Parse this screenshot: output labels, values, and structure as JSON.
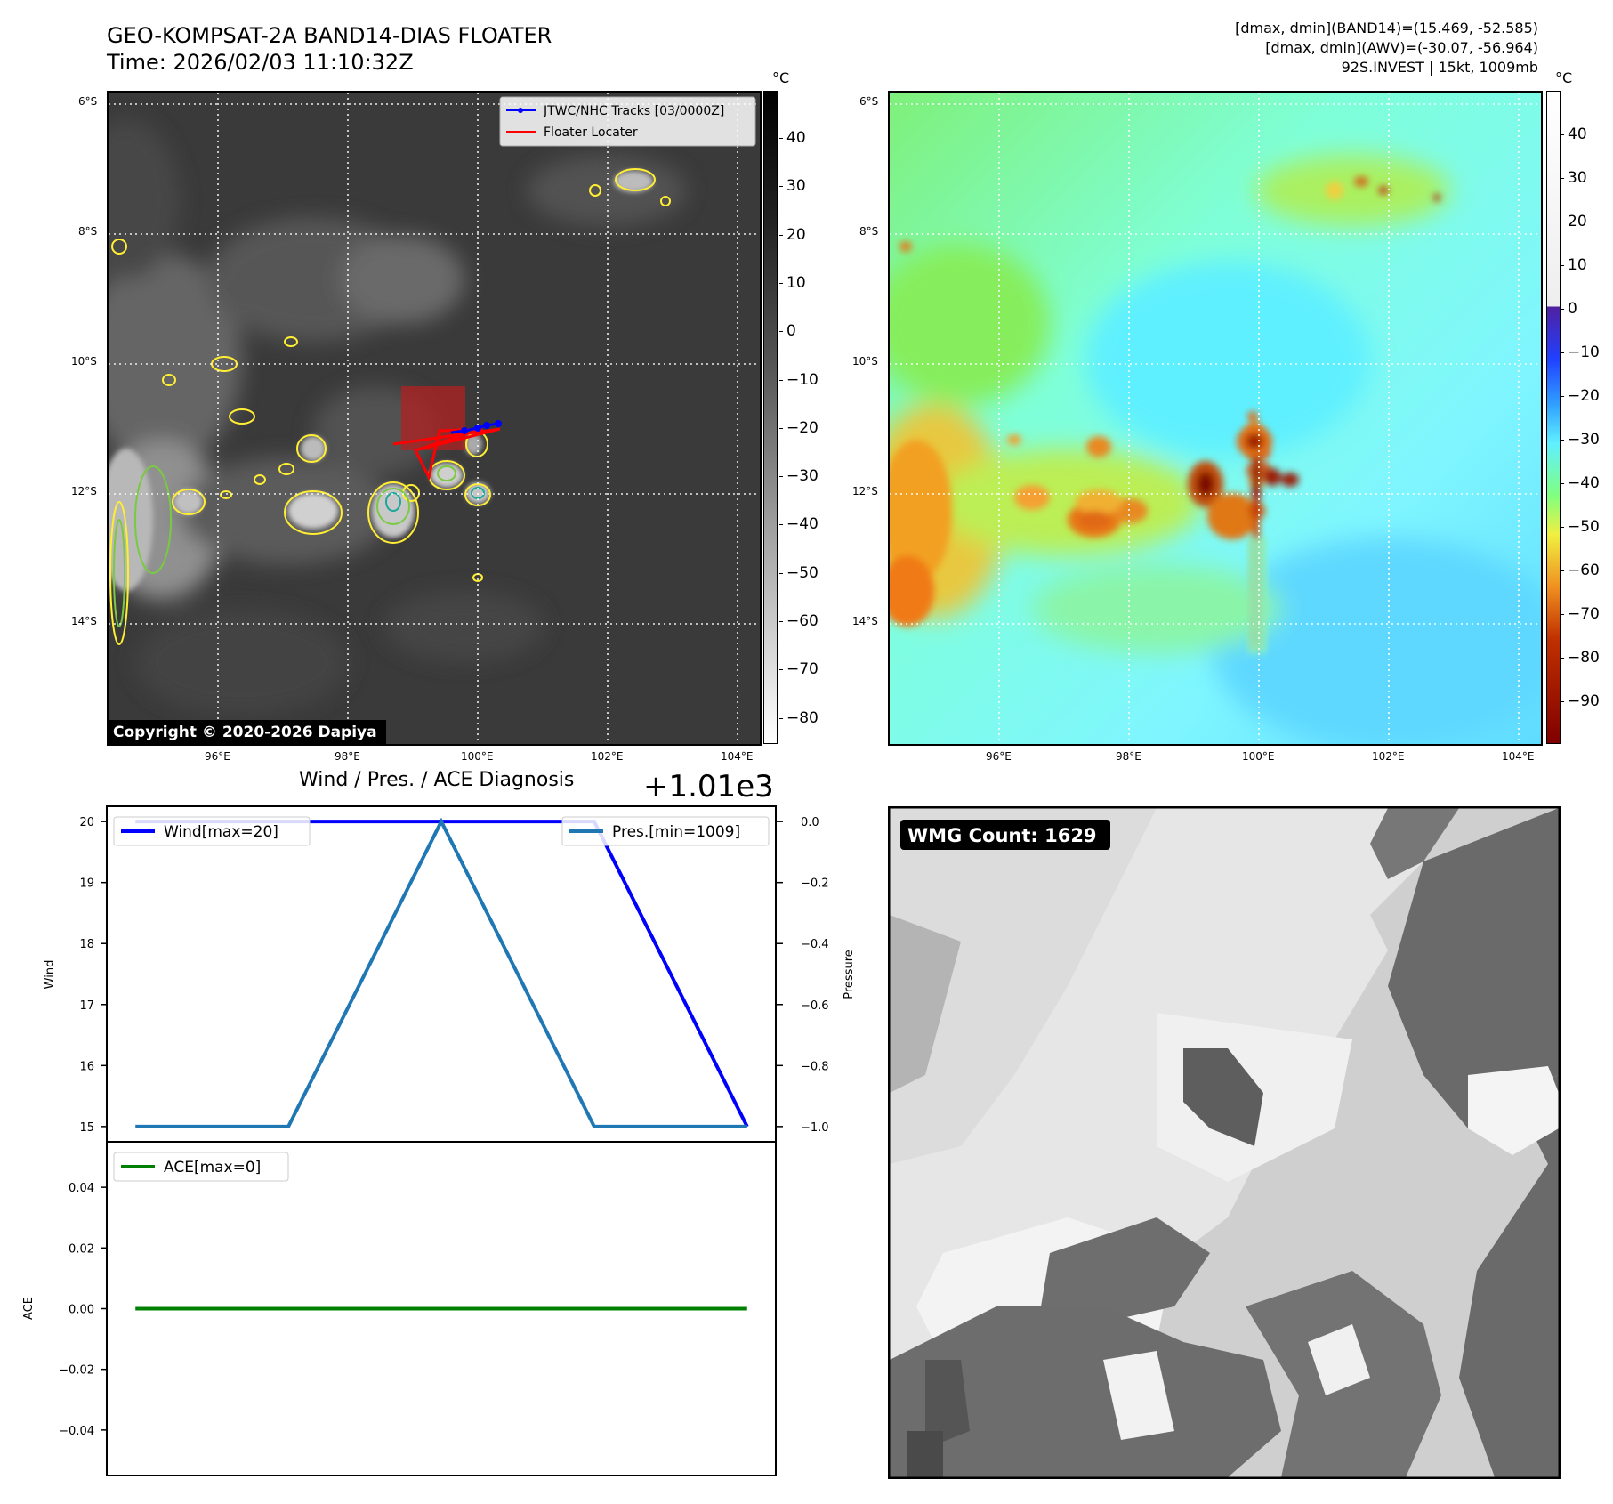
{
  "header": {
    "title_line1": "GEO-KOMPSAT-2A BAND14-DIAS FLOATER",
    "title_line2": "Time: 2026/02/03 11:10:32Z",
    "stats_line1": "[dmax, dmin](BAND14)=(15.469, -52.585)",
    "stats_line2": "[dmax, dmin](AWV)=(-30.07, -56.964)",
    "stats_line3": "92S.INVEST | 15kt, 1009mb"
  },
  "map": {
    "lat_labels": [
      "6°S",
      "8°S",
      "10°S",
      "12°S",
      "14°S"
    ],
    "lon_labels": [
      "96°E",
      "98°E",
      "100°E",
      "102°E",
      "104°E"
    ],
    "legend_track": "JTWC/NHC Tracks [03/0000Z]",
    "legend_floater": "Floater Locater",
    "copyright": "Copyright © 2020-2026 Dapiya",
    "track_color": "#0000ff",
    "floater_color": "#ff0000"
  },
  "colorbar_gray": {
    "unit": "°C",
    "ticks": [
      "40",
      "30",
      "20",
      "10",
      "0",
      "−10",
      "−20",
      "−30",
      "−40",
      "−50",
      "−60",
      "−70",
      "−80"
    ]
  },
  "colorbar_color": {
    "unit": "°C",
    "ticks": [
      "40",
      "30",
      "20",
      "10",
      "0",
      "−10",
      "−20",
      "−30",
      "−40",
      "−50",
      "−60",
      "−70",
      "−80",
      "−90"
    ]
  },
  "wmg": {
    "label": "WMG Count: 1629"
  },
  "chart_data": [
    {
      "type": "line",
      "title": "Wind / Pres. / ACE Diagnosis",
      "offset_label": "+1.01e3",
      "x": [
        0,
        1,
        2,
        3,
        4
      ],
      "series": [
        {
          "name": "Wind[max=20]",
          "axis": "left",
          "color": "#0000ff",
          "values": [
            20,
            20,
            20,
            20,
            15
          ]
        },
        {
          "name": "Pres.[min=1009]",
          "axis": "right",
          "color": "#1f77b4",
          "values": [
            -1.0,
            -1.0,
            0.0,
            -1.0,
            -1.0
          ]
        }
      ],
      "ylabel_left": "Wind",
      "ylabel_right": "Pressure",
      "ylim_left": [
        14.75,
        20.25
      ],
      "ylim_right": [
        -1.05,
        0.05
      ],
      "yticks_left": [
        "20",
        "19",
        "18",
        "17",
        "16",
        "15"
      ],
      "yticks_right": [
        "0.0",
        "−0.2",
        "−0.4",
        "−0.6",
        "−0.8",
        "−1.0"
      ]
    },
    {
      "type": "line",
      "x": [
        0,
        4
      ],
      "series": [
        {
          "name": "ACE[max=0]",
          "color": "#008000",
          "values": [
            0,
            0
          ]
        }
      ],
      "ylabel": "ACE",
      "ylim": [
        -0.055,
        0.055
      ],
      "yticks": [
        "0.04",
        "0.02",
        "0.00",
        "−0.02",
        "−0.04"
      ]
    }
  ]
}
